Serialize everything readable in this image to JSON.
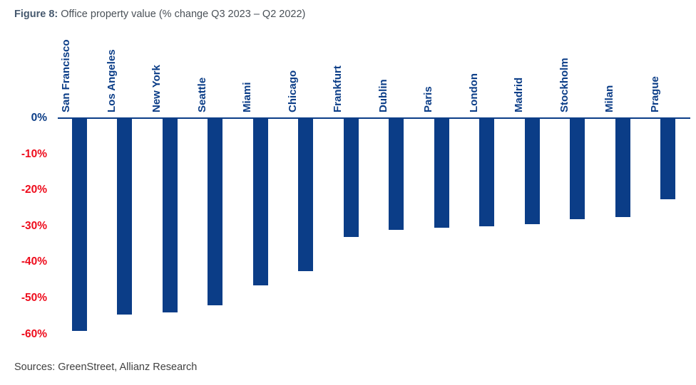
{
  "figure": {
    "label": "Figure 8:",
    "caption": " Office property value (% change Q3 2023 – Q2 2022)",
    "sources": "Sources: GreenStreet, Allianz Research"
  },
  "colors": {
    "bar_navy": "#0b3d87",
    "tick_red": "#ee0c1c",
    "title_label": "#46596e",
    "title_text": "#4a5158",
    "sources_text": "#414141"
  },
  "chart_data": {
    "type": "bar",
    "title": "Office property value (% change Q3 2023 – Q2 2022)",
    "categories": [
      "San Francisco",
      "Los Angeles",
      "New York",
      "Seattle",
      "Miami",
      "Chicago",
      "Frankfurt",
      "Dublin",
      "Paris",
      "London",
      "Madrid",
      "Stockholm",
      "Milan",
      "Prague"
    ],
    "values": [
      -59,
      -54.5,
      -54,
      -52,
      -46.5,
      -42.5,
      -33,
      -31,
      -30.5,
      -30,
      -29.5,
      -28,
      -27.5,
      -22.5
    ],
    "unit": "%",
    "xlabel": "",
    "ylabel": "",
    "ylim": [
      -60,
      0
    ],
    "yticks": [
      0,
      -10,
      -20,
      -30,
      -40,
      -50,
      -60
    ],
    "ytick_labels": [
      "0%",
      "-10%",
      "-20%",
      "-30%",
      "-40%",
      "-50%",
      "-60%"
    ],
    "grid": false,
    "legend": null,
    "bar_color": "#0b3d87",
    "zero_tick_color": "#0b3d87",
    "negative_tick_color": "#ee0c1c",
    "category_label_rotation": -90,
    "category_label_position": "above-zero-line"
  }
}
